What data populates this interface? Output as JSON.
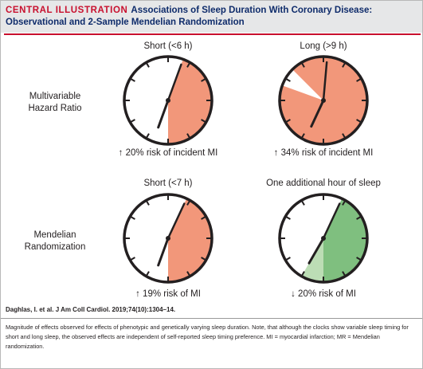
{
  "header": {
    "label": "CENTRAL ILLUSTRATION",
    "title": "Associations of Sleep Duration With Coronary Disease:",
    "subtitle": "Observational and 2-Sample Mendelian Randomization"
  },
  "rows": [
    {
      "label_line1": "Multivariable",
      "label_line2": "Hazard Ratio"
    },
    {
      "label_line1": "Mendelian",
      "label_line2": "Randomization"
    }
  ],
  "panels": [
    {
      "title": "Short (<6 h)",
      "arrow": "↑",
      "caption": "20% risk of incident MI",
      "effect": {
        "direction": "increase",
        "percent": 20
      },
      "clock": {
        "sector_start_deg": 20,
        "sector_end_deg": 180,
        "sector_color": "#f2977a",
        "hour_hand_deg": 200,
        "minute_hand_deg": 20
      }
    },
    {
      "title": "Long (>9 h)",
      "arrow": "↑",
      "caption": "34% risk of incident MI",
      "effect": {
        "direction": "increase",
        "percent": 34
      },
      "clock": {
        "sector_start_deg": 0,
        "sector_end_deg": 360,
        "gap_start_deg": 290,
        "gap_end_deg": 315,
        "sector_color": "#f2977a",
        "hour_hand_deg": 205,
        "minute_hand_deg": 5
      }
    },
    {
      "title": "Short (<7 h)",
      "arrow": "↑",
      "caption": "19% risk of MI",
      "effect": {
        "direction": "increase",
        "percent": 19
      },
      "clock": {
        "sector_start_deg": 25,
        "sector_end_deg": 180,
        "sector_color": "#f2977a",
        "hour_hand_deg": 200,
        "minute_hand_deg": 25
      }
    },
    {
      "title": "One additional hour of sleep",
      "arrow": "↓",
      "caption": "20% risk of MI",
      "effect": {
        "direction": "decrease",
        "percent": 20
      },
      "clock": {
        "sector_start_deg": 25,
        "sector_end_deg": 180,
        "sector_color": "#7fbf7f",
        "extra_start_deg": 180,
        "extra_end_deg": 210,
        "extra_color": "#bcddb5",
        "hour_hand_deg": 210,
        "minute_hand_deg": 25
      }
    }
  ],
  "citation": "Daghlas, I. et al. J Am Coll Cardiol. 2019;74(10):1304–14.",
  "footnote": "Magnitude of effects observed for effects of phenotypic and genetically varying sleep duration. Note, that although the clocks show variable sleep timing for short and long sleep, the observed effects are independent of self-reported sleep timing preference. MI = myocardial infarction; MR = Mendelian randomization.",
  "colors": {
    "brand_red": "#c8102e",
    "title_navy": "#0f2c6b",
    "header_gray": "#e6e7e8",
    "risk_salmon": "#f2977a",
    "benefit_green": "#7fbf7f",
    "benefit_light_green": "#bcddb5"
  }
}
